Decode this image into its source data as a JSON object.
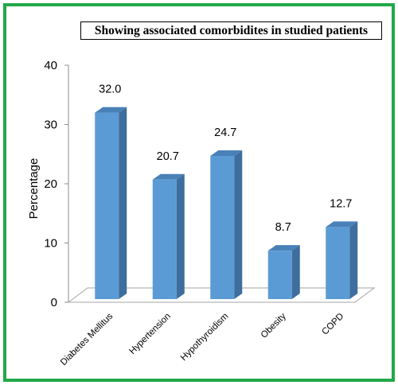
{
  "chart_data": {
    "type": "bar",
    "title": "Showing associated comorbidites in studied patients",
    "xlabel": "",
    "ylabel": "Percentage",
    "categories": [
      "Diabetes Mellitus",
      "Hypertension",
      "Hypothyroidism",
      "Obesity",
      "COPD"
    ],
    "values": [
      32.0,
      20.7,
      24.7,
      8.7,
      12.7
    ],
    "value_labels": [
      "32.0",
      "20.7",
      "24.7",
      "8.7",
      "12.7"
    ],
    "yticks": [
      "0",
      "10",
      "20",
      "30",
      "40"
    ],
    "ylim": [
      0,
      40
    ],
    "grid": false,
    "legend": "none",
    "colors": {
      "bar_front": "#5b9bd5",
      "bar_side": "#3d6e9e",
      "bar_top": "#4a80b8",
      "border": "#22a84a"
    }
  }
}
